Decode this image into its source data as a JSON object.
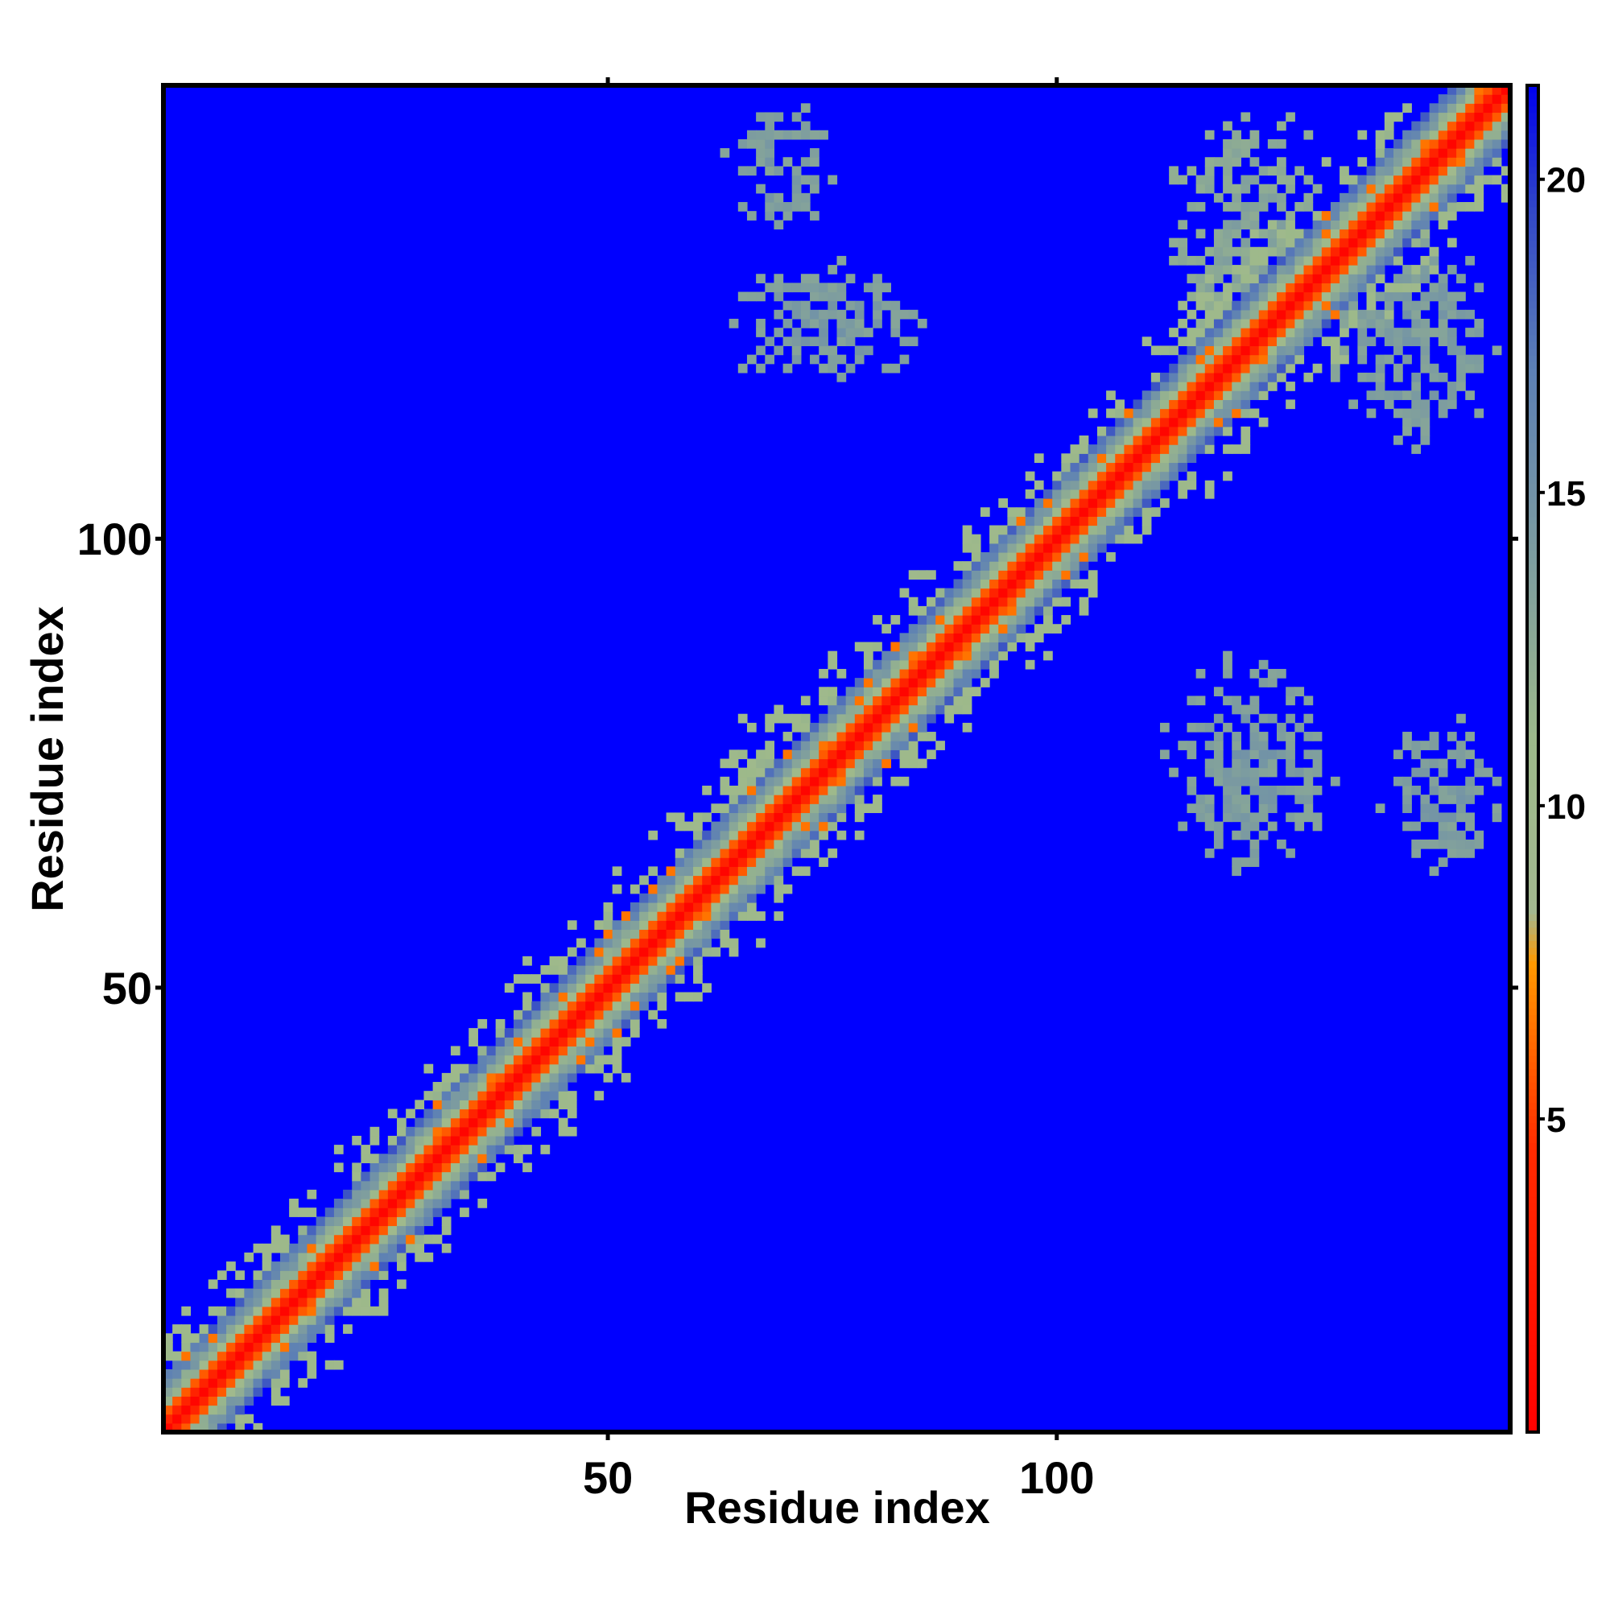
{
  "chart_data": {
    "type": "heatmap",
    "title": "",
    "xlabel": "Residue index",
    "ylabel": "Residue index",
    "n_residues": 150,
    "xlim": [
      1,
      150
    ],
    "ylim": [
      1,
      150
    ],
    "x_ticks": [
      50,
      100
    ],
    "y_ticks": [
      50,
      100
    ],
    "colorbar": {
      "range": [
        0,
        21.5
      ],
      "ticks": [
        5,
        10,
        15,
        20
      ],
      "scale": [
        {
          "value": 0,
          "color": "#ff0000"
        },
        {
          "value": 4.5,
          "color": "#ff2a00"
        },
        {
          "value": 7.5,
          "color": "#ff9900"
        },
        {
          "value": 8.3,
          "color": "#a3b890"
        },
        {
          "value": 11,
          "color": "#9db98a"
        },
        {
          "value": 17,
          "color": "#5c7fb5"
        },
        {
          "value": 19.5,
          "color": "#3247c8"
        },
        {
          "value": 21.5,
          "color": "#0000ee"
        }
      ]
    },
    "background_color": "#0000ff",
    "diagonal_band": {
      "core_distance": 4.5,
      "halfwidth": 2.5,
      "outer_halfwidth": 6
    },
    "contact_clusters": [
      {
        "x": [
          63,
          75
        ],
        "y": [
          134,
          149
        ],
        "value": 15
      },
      {
        "x": [
          63,
          86
        ],
        "y": [
          116,
          131
        ],
        "value": 15
      },
      {
        "x": [
          112,
          132
        ],
        "y": [
          118,
          148
        ],
        "value": 14
      },
      {
        "x": [
          131,
          150
        ],
        "y": [
          110,
          134
        ],
        "value": 15
      },
      {
        "x": [
          112,
          131
        ],
        "y": [
          62,
          87
        ],
        "value": 15
      },
      {
        "x": [
          136,
          150
        ],
        "y": [
          63,
          80
        ],
        "value": 15
      },
      {
        "x": [
          62,
          76
        ],
        "y": [
          62,
          82
        ],
        "value": 12
      }
    ],
    "grid": false,
    "legend": "none"
  }
}
